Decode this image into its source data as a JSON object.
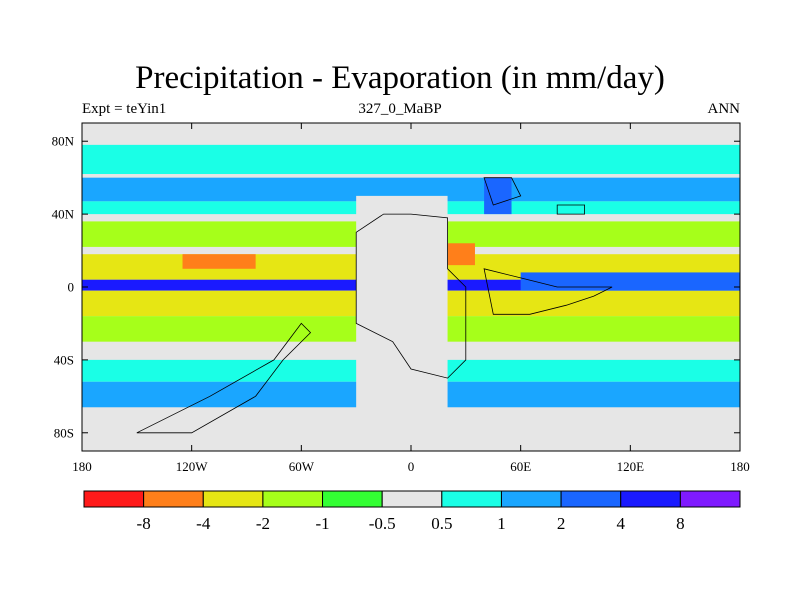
{
  "chart_data": {
    "type": "heatmap",
    "title": "Precipitation - Evaporation (in mm/day)",
    "subtitle_left": "Expt = teYin1",
    "subtitle_center": "327_0_MaBP",
    "subtitle_right": "ANN",
    "x_range": [
      -180,
      180
    ],
    "y_range": [
      -90,
      90
    ],
    "x_ticks": [
      {
        "value": -180,
        "label": "180"
      },
      {
        "value": -120,
        "label": "120W"
      },
      {
        "value": -60,
        "label": "60W"
      },
      {
        "value": 0,
        "label": "0"
      },
      {
        "value": 60,
        "label": "60E"
      },
      {
        "value": 120,
        "label": "120E"
      },
      {
        "value": 180,
        "label": "180"
      }
    ],
    "y_ticks": [
      {
        "value": 80,
        "label": "80N"
      },
      {
        "value": 40,
        "label": "40N"
      },
      {
        "value": 0,
        "label": "0"
      },
      {
        "value": -40,
        "label": "40S"
      },
      {
        "value": -80,
        "label": "80S"
      }
    ],
    "colorbar": {
      "colors": [
        "#ff1a1a",
        "#ff7f1a",
        "#e6e614",
        "#a6ff1a",
        "#33ff33",
        "#e6e6e6",
        "#1affe6",
        "#1aa6ff",
        "#1a66ff",
        "#1a1aff",
        "#7f1aff"
      ],
      "labels": [
        "-8",
        "-4",
        "-2",
        "-1",
        "-0.5",
        "0.5",
        "1",
        "2",
        "4",
        "8"
      ]
    },
    "field": [
      {
        "level": 6,
        "lon": [
          -180,
          180
        ],
        "lat": [
          62,
          78
        ]
      },
      {
        "level": 7,
        "lon": [
          -180,
          180
        ],
        "lat": [
          47,
          60
        ]
      },
      {
        "level": 6,
        "lon": [
          -180,
          180
        ],
        "lat": [
          40,
          47
        ]
      },
      {
        "level": 3,
        "lon": [
          -180,
          180
        ],
        "lat": [
          22,
          36
        ]
      },
      {
        "level": 2,
        "lon": [
          -180,
          180
        ],
        "lat": [
          4,
          18
        ]
      },
      {
        "level": 9,
        "lon": [
          -180,
          180
        ],
        "lat": [
          -2,
          4
        ]
      },
      {
        "level": 2,
        "lon": [
          -180,
          180
        ],
        "lat": [
          -16,
          -2
        ]
      },
      {
        "level": 3,
        "lon": [
          -180,
          180
        ],
        "lat": [
          -30,
          -16
        ]
      },
      {
        "level": 6,
        "lon": [
          -180,
          180
        ],
        "lat": [
          -52,
          -40
        ]
      },
      {
        "level": 7,
        "lon": [
          -180,
          180
        ],
        "lat": [
          -66,
          -52
        ]
      },
      {
        "level": 1,
        "lon": [
          -125,
          -85
        ],
        "lat": [
          10,
          18
        ]
      },
      {
        "level": 8,
        "lon": [
          60,
          180
        ],
        "lat": [
          -2,
          8
        ]
      },
      {
        "level": 5,
        "lon": [
          -30,
          20
        ],
        "lat": [
          -80,
          50
        ]
      },
      {
        "level": 1,
        "lon": [
          20,
          35
        ],
        "lat": [
          12,
          24
        ]
      },
      {
        "level": 8,
        "lon": [
          40,
          55
        ],
        "lat": [
          40,
          60
        ]
      }
    ]
  }
}
